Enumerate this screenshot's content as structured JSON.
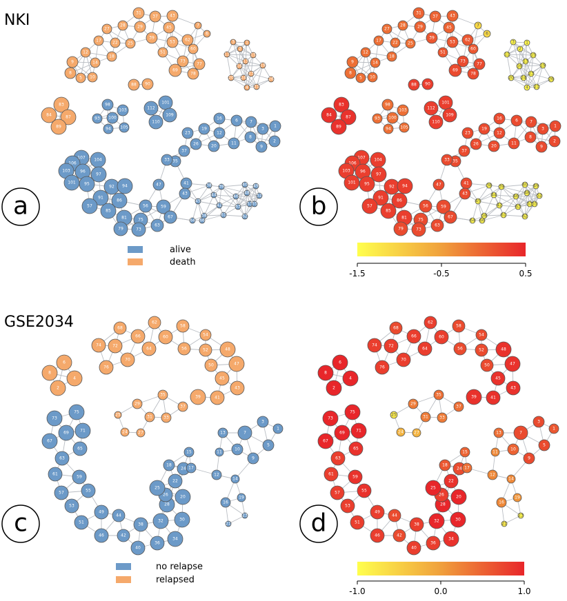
{
  "datasets": {
    "top": {
      "title": "NKI"
    },
    "bottom": {
      "title": "GSE2034"
    }
  },
  "panels": [
    "a",
    "b",
    "c",
    "d"
  ],
  "legends": {
    "top": [
      {
        "label": "alive",
        "color": "#6c9ac8"
      },
      {
        "label": "death",
        "color": "#f5a96b"
      }
    ],
    "bottom": [
      {
        "label": "no relapse",
        "color": "#6c9ac8"
      },
      {
        "label": "relapsed",
        "color": "#f5a96b"
      }
    ]
  },
  "colorbars": {
    "top": {
      "ticks": [
        "-1.5",
        "-0.5",
        "0.5"
      ],
      "min": -1.5,
      "max": 0.5
    },
    "bottom": {
      "ticks": [
        "-1.0",
        "0.0",
        "1.0"
      ],
      "min": -1.0,
      "max": 1.0
    }
  },
  "colors": {
    "alive": "#6c9ac8",
    "death": "#f5a96b",
    "node_stroke": "#555555",
    "edge": "#b9bdc3",
    "scale_low": "#ffff4d",
    "scale_mid": "#f0a03c",
    "scale_high": "#e8262a"
  }
}
